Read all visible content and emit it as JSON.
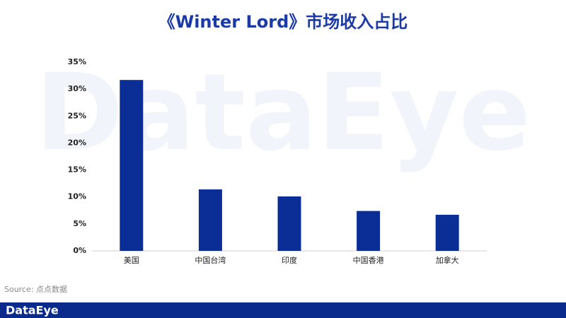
{
  "chart_data": {
    "type": "bar",
    "title": "《Winter Lord》市场收入占比",
    "categories": [
      "美国",
      "中国台湾",
      "印度",
      "中国香港",
      "加拿大"
    ],
    "values": [
      31.7,
      11.4,
      10.1,
      7.4,
      6.7
    ],
    "color": "#0b2d96",
    "ylim": [
      0,
      35
    ],
    "yticks": [
      {
        "value": 0,
        "label": "0%"
      },
      {
        "value": 5,
        "label": "5%"
      },
      {
        "value": 10,
        "label": "10%"
      },
      {
        "value": 15,
        "label": "15%"
      },
      {
        "value": 20,
        "label": "20%"
      },
      {
        "value": 25,
        "label": "25%"
      },
      {
        "value": 30,
        "label": "30%"
      },
      {
        "value": 35,
        "label": "35%"
      }
    ],
    "grid": false,
    "source": "Source: 点点数据",
    "watermark": "DataEye",
    "logo": "DataEye"
  }
}
